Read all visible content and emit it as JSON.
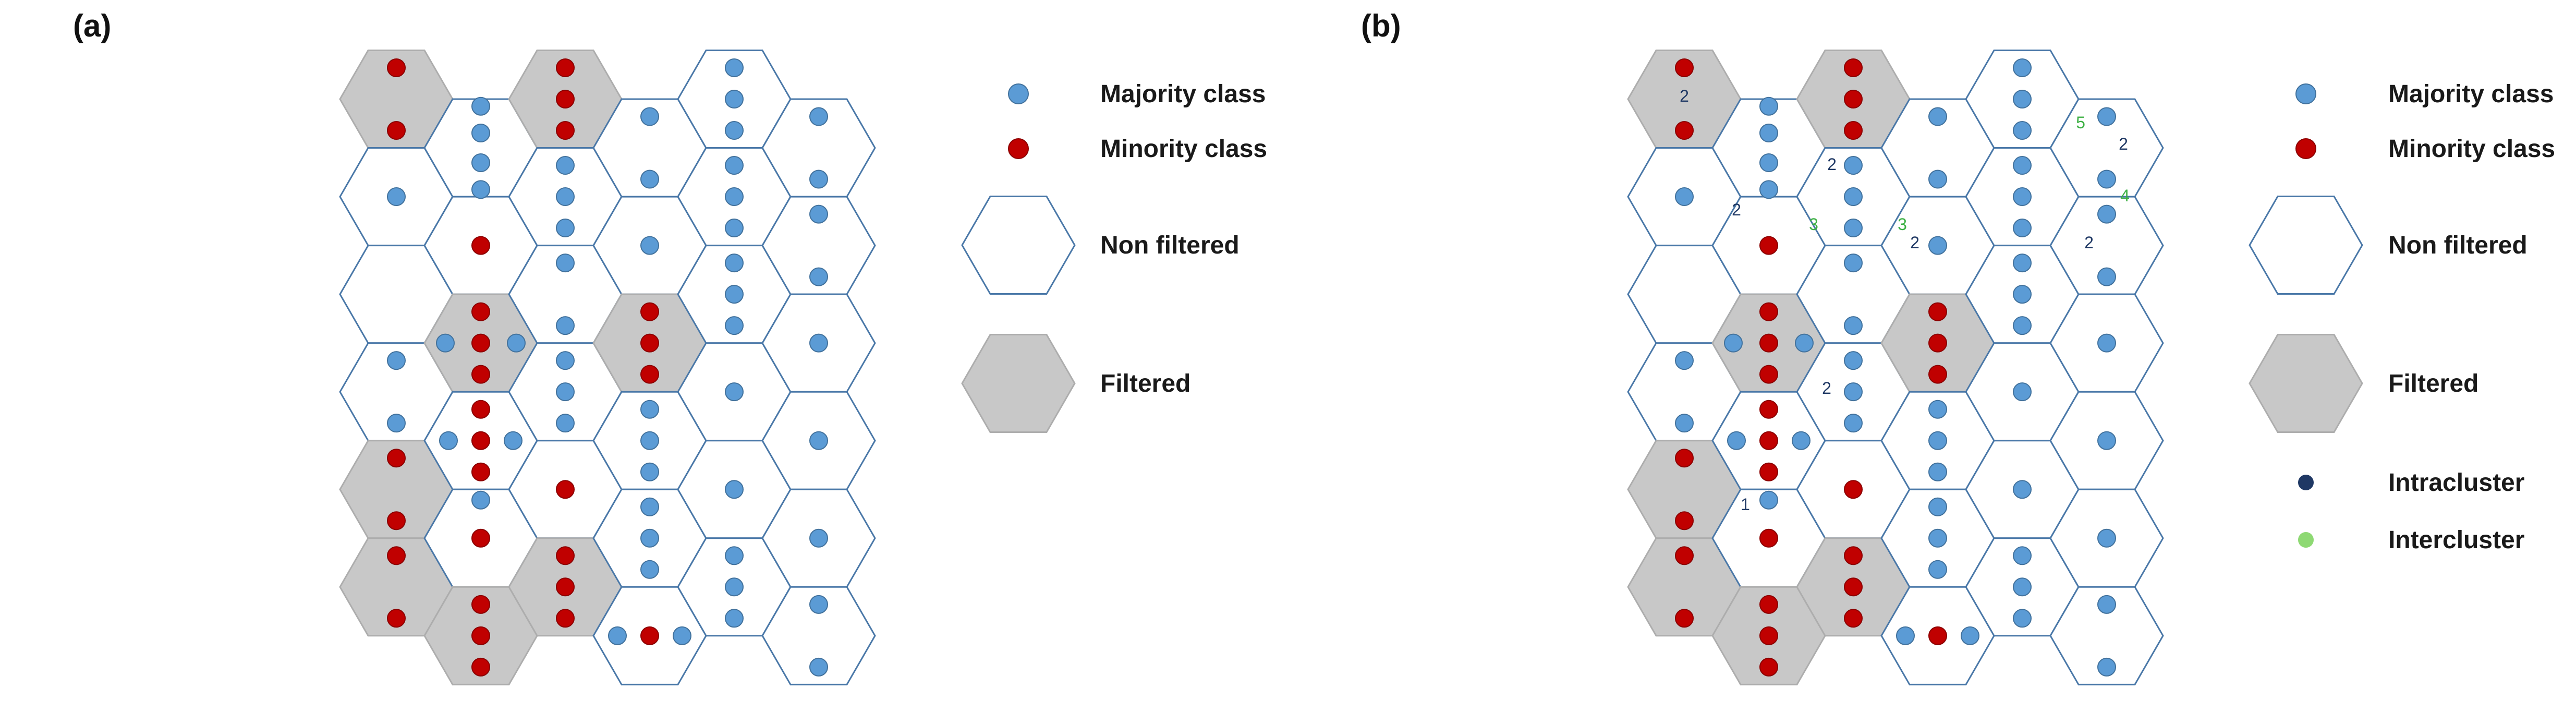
{
  "colors": {
    "majority": "#5B9BD5",
    "majority_stroke": "#41719C",
    "minority": "#C00000",
    "minority_stroke": "#8B0000",
    "filtered_fill": "#C8C8C8",
    "filtered_stroke": "#ADADAD",
    "hex_stroke": "#4A78A8",
    "intra": "#1F3864",
    "inter": "#3CB043"
  },
  "panels": [
    {
      "label": "(a)"
    },
    {
      "label": "(b)"
    }
  ],
  "legend_a": [
    {
      "key": "majority",
      "label": "Majority class"
    },
    {
      "key": "minority",
      "label": "Minority class"
    },
    {
      "key": "nonfiltered",
      "label": "Non filtered"
    },
    {
      "key": "filtered",
      "label": "Filtered"
    }
  ],
  "legend_b": [
    {
      "key": "majority",
      "label": "Majority class"
    },
    {
      "key": "minority",
      "label": "Minority class"
    },
    {
      "key": "nonfiltered",
      "label": "Non filtered"
    },
    {
      "key": "filtered",
      "label": "Filtered"
    },
    {
      "key": "intra",
      "label": "Intracluster"
    },
    {
      "key": "inter",
      "label": "Intercluster"
    }
  ],
  "grid": {
    "cols": 6,
    "rows": 6,
    "cells": [
      [
        {
          "f": true,
          "pts": "2R"
        },
        {
          "f": false,
          "pts": "4B"
        },
        {
          "f": true,
          "pts": "3R"
        },
        {
          "f": false,
          "pts": "2B"
        },
        {
          "f": false,
          "pts": "3B"
        },
        {
          "f": false,
          "pts": "2B"
        }
      ],
      [
        {
          "f": false,
          "pts": "1B"
        },
        {
          "f": false,
          "pts": "1R"
        },
        {
          "f": false,
          "pts": "3B"
        },
        {
          "f": false,
          "pts": "1B"
        },
        {
          "f": false,
          "pts": "3B"
        },
        {
          "f": false,
          "pts": "2B"
        }
      ],
      [
        {
          "f": false,
          "pts": "empty"
        },
        {
          "f": true,
          "pts": "3R2B"
        },
        {
          "f": false,
          "pts": "2B"
        },
        {
          "f": true,
          "pts": "3R"
        },
        {
          "f": false,
          "pts": "3B"
        },
        {
          "f": false,
          "pts": "1B"
        }
      ],
      [
        {
          "f": false,
          "pts": "2B"
        },
        {
          "f": false,
          "pts": "3R3B"
        },
        {
          "f": false,
          "pts": "3B"
        },
        {
          "f": false,
          "pts": "3B"
        },
        {
          "f": false,
          "pts": "1B"
        },
        {
          "f": false,
          "pts": "1B"
        }
      ],
      [
        {
          "f": true,
          "pts": "2R"
        },
        {
          "f": false,
          "pts": "1R"
        },
        {
          "f": false,
          "pts": "1R"
        },
        {
          "f": false,
          "pts": "3B"
        },
        {
          "f": false,
          "pts": "1B"
        },
        {
          "f": false,
          "pts": "1B"
        }
      ],
      [
        {
          "f": true,
          "pts": "2R"
        },
        {
          "f": true,
          "pts": "3R"
        },
        {
          "f": true,
          "pts": "3R"
        },
        {
          "f": false,
          "pts": "1R2B"
        },
        {
          "f": false,
          "pts": "3B"
        },
        {
          "f": false,
          "pts": "2B"
        }
      ]
    ]
  },
  "cluster_labels_b": [
    {
      "text": "2",
      "kind": "intra"
    },
    {
      "text": "2",
      "kind": "intra"
    },
    {
      "text": "2",
      "kind": "intra"
    },
    {
      "text": "3",
      "kind": "inter"
    },
    {
      "text": "3",
      "kind": "inter"
    },
    {
      "text": "2",
      "kind": "intra"
    },
    {
      "text": "5",
      "kind": "inter"
    },
    {
      "text": "2",
      "kind": "intra"
    },
    {
      "text": "4",
      "kind": "inter"
    },
    {
      "text": "2",
      "kind": "intra"
    },
    {
      "text": "2",
      "kind": "intra"
    },
    {
      "text": "1",
      "kind": "intra"
    }
  ]
}
